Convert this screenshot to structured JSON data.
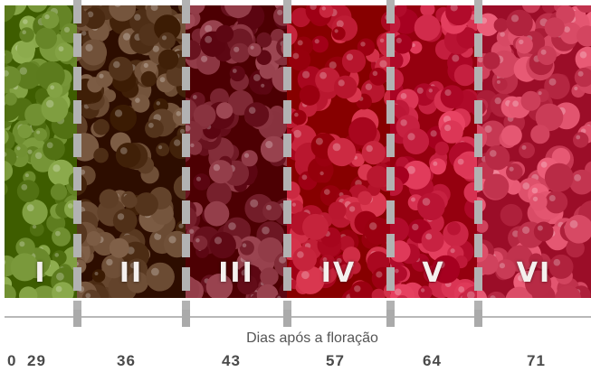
{
  "stages": [
    {
      "label": "I",
      "hue": "#6b8a2c"
    },
    {
      "label": "II",
      "hue": "#5a3a22"
    },
    {
      "label": "III",
      "hue": "#7a2430"
    },
    {
      "label": "IV",
      "hue": "#b4122a"
    },
    {
      "label": "V",
      "hue": "#c21c3c"
    },
    {
      "label": "VI",
      "hue": "#c83a55"
    }
  ],
  "axis": {
    "title": "Dias após a floração",
    "start_label": "0",
    "day_labels": [
      "29",
      "36",
      "43",
      "57",
      "64",
      "71"
    ]
  }
}
